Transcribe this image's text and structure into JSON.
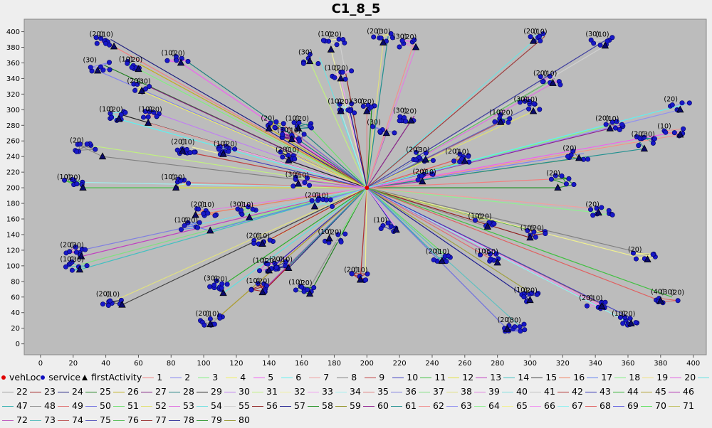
{
  "chart_data": {
    "type": "scatter",
    "title": "C1_8_5",
    "xlabel": "",
    "ylabel": "",
    "xlim": [
      -10,
      408
    ],
    "ylim": [
      -14,
      416
    ],
    "xticks": [
      0,
      20,
      40,
      60,
      80,
      100,
      120,
      140,
      160,
      180,
      200,
      220,
      240,
      260,
      280,
      300,
      320,
      340,
      360,
      380,
      400
    ],
    "yticks": [
      0,
      20,
      40,
      60,
      80,
      100,
      120,
      140,
      160,
      180,
      200,
      220,
      240,
      260,
      280,
      300,
      320,
      340,
      360,
      380,
      400
    ],
    "grid": false,
    "depot": {
      "x": 200,
      "y": 200
    },
    "legend_placement": "bottom",
    "legend_fixed": [
      {
        "label": "vehLoc",
        "symbol": "dot",
        "color": "#e00000"
      },
      {
        "label": "service",
        "symbol": "dot",
        "color": "#1010c0"
      },
      {
        "label": "firstActivity",
        "symbol": "triangle",
        "color": "#000000"
      }
    ],
    "route_labels": [
      "1",
      "2",
      "3",
      "4",
      "5",
      "6",
      "7",
      "8",
      "9",
      "10",
      "11",
      "12",
      "13",
      "14",
      "15",
      "16",
      "17",
      "18",
      "19",
      "20",
      "21",
      "22",
      "23",
      "24",
      "25",
      "26",
      "27",
      "28",
      "29",
      "30",
      "31",
      "32",
      "33",
      "34",
      "35",
      "36",
      "37",
      "38",
      "39",
      "40",
      "41",
      "42",
      "43",
      "44",
      "45",
      "46",
      "47",
      "48",
      "49",
      "50",
      "51",
      "52",
      "53",
      "54",
      "55",
      "56",
      "57",
      "58",
      "59",
      "60",
      "61",
      "62",
      "63",
      "64",
      "65",
      "66",
      "67",
      "68",
      "69",
      "70",
      "71",
      "72",
      "73",
      "74",
      "75",
      "76",
      "77",
      "78",
      "79",
      "80"
    ],
    "route_colors": [
      "#f08080",
      "#8080f0",
      "#80f080",
      "#f0f060",
      "#f060f0",
      "#60f0f0",
      "#f0a0a0",
      "#808080",
      "#c04040",
      "#4040c0",
      "#40c040",
      "#e0e040",
      "#c040c0",
      "#40c0c0",
      "#404040",
      "#f08060",
      "#6080f0",
      "#80f080",
      "#f0e080",
      "#e060e0",
      "#60e0e0",
      "#a0a0a0",
      "#a02020",
      "#202080",
      "#208020",
      "#c0b020",
      "#802080",
      "#208080",
      "#202020",
      "#c080f0",
      "#c0f080",
      "#f0f0a0",
      "#f0a0f0",
      "#a0f0f0",
      "#e08080",
      "#8080e0",
      "#80e080",
      "#e0e080",
      "#e080e0",
      "#80e0e0",
      "#c0c0c0",
      "#b03030",
      "#3030b0",
      "#30b030",
      "#b0a030",
      "#b030b0",
      "#30b0b0",
      "#909090",
      "#e07070",
      "#7070e0",
      "#70e070",
      "#e0e070",
      "#e070e0",
      "#70e0e0",
      "#d0d0d0",
      "#902020",
      "#202090",
      "#209020",
      "#909020",
      "#902090",
      "#209090",
      "#f09090",
      "#9090f0",
      "#90f090",
      "#f0f090",
      "#f090f0",
      "#90f0f0",
      "#e06060",
      "#6060e0",
      "#60e060",
      "#c0c060",
      "#c060c0",
      "#60c0c0",
      "#c06060",
      "#6060c0",
      "#60c060",
      "#a04040",
      "#4040a0",
      "#40a040",
      "#a0a040"
    ],
    "clusters": [
      {
        "x": 40,
        "y": 388,
        "triangle": [
          45,
          381
        ],
        "n": 8,
        "labels": [
          "(20)",
          "(10)"
        ]
      },
      {
        "x": 36,
        "y": 355,
        "triangle": [
          35,
          350
        ],
        "n": 6,
        "labels": [
          "(30)"
        ]
      },
      {
        "x": 58,
        "y": 356,
        "triangle": [
          60,
          352
        ],
        "n": 7,
        "labels": [
          "(10)",
          "(20)"
        ]
      },
      {
        "x": 63,
        "y": 328,
        "triangle": [
          62,
          324
        ],
        "n": 7,
        "labels": [
          "(20)",
          "(30)"
        ]
      },
      {
        "x": 84,
        "y": 364,
        "triangle": [
          86,
          360
        ],
        "n": 6,
        "labels": [
          "(10)",
          "(20)"
        ]
      },
      {
        "x": 46,
        "y": 292,
        "triangle": [
          48,
          288
        ],
        "n": 8,
        "labels": [
          "(10)",
          "(20)"
        ]
      },
      {
        "x": 70,
        "y": 292,
        "triangle": [
          66,
          283
        ],
        "n": 8,
        "labels": [
          "(10)",
          "(20)"
        ]
      },
      {
        "x": 28,
        "y": 252,
        "triangle": [
          38,
          240
        ],
        "n": 9,
        "labels": [
          "(20)"
        ]
      },
      {
        "x": 90,
        "y": 250,
        "triangle": [
          87,
          247
        ],
        "n": 10,
        "labels": [
          "(20)",
          "(10)"
        ]
      },
      {
        "x": 116,
        "y": 248,
        "triangle": [
          112,
          243
        ],
        "n": 10,
        "labels": [
          "(10)",
          "(20)"
        ]
      },
      {
        "x": 20,
        "y": 205,
        "triangle": [
          26,
          200
        ],
        "n": 7,
        "labels": [
          "(10)",
          "(20)"
        ]
      },
      {
        "x": 84,
        "y": 205,
        "triangle": [
          83,
          200
        ],
        "n": 6,
        "labels": [
          "(10)",
          "(20)"
        ]
      },
      {
        "x": 22,
        "y": 118,
        "triangle": [
          25,
          112
        ],
        "n": 9,
        "labels": [
          "(20)",
          "(30)"
        ]
      },
      {
        "x": 22,
        "y": 100,
        "triangle": [
          24,
          95
        ],
        "n": 7,
        "labels": [
          "(10)",
          "(30)"
        ]
      },
      {
        "x": 44,
        "y": 55,
        "triangle": [
          50,
          50
        ],
        "n": 7,
        "labels": [
          "(20)",
          "(10)"
        ]
      },
      {
        "x": 102,
        "y": 170,
        "triangle": [
          95,
          165
        ],
        "n": 9,
        "labels": [
          "(20)",
          "(10)"
        ]
      },
      {
        "x": 92,
        "y": 150,
        "triangle": [
          104,
          145
        ],
        "n": 6,
        "labels": [
          "(10)",
          "(20)"
        ]
      },
      {
        "x": 126,
        "y": 170,
        "triangle": [
          128,
          162
        ],
        "n": 7,
        "labels": [
          "(30)",
          "(10)"
        ]
      },
      {
        "x": 136,
        "y": 130,
        "triangle": [
          136,
          128
        ],
        "n": 7,
        "labels": [
          "(20)",
          "(10)"
        ]
      },
      {
        "x": 140,
        "y": 98,
        "triangle": [
          140,
          94
        ],
        "n": 7,
        "labels": [
          "(10)",
          "(20)"
        ]
      },
      {
        "x": 110,
        "y": 75,
        "triangle": [
          112,
          65
        ],
        "n": 10,
        "labels": [
          "(30)",
          "(20)"
        ]
      },
      {
        "x": 105,
        "y": 30,
        "triangle": [
          104,
          25
        ],
        "n": 10,
        "labels": [
          "(20)",
          "(10)"
        ]
      },
      {
        "x": 136,
        "y": 72,
        "triangle": [
          136,
          66
        ],
        "n": 8,
        "labels": [
          "(10)",
          "(20)"
        ]
      },
      {
        "x": 150,
        "y": 100,
        "triangle": [
          152,
          97
        ],
        "n": 8,
        "labels": [
          "(20)",
          "(10)"
        ]
      },
      {
        "x": 162,
        "y": 70,
        "triangle": [
          165,
          64
        ],
        "n": 8,
        "labels": [
          "(10)",
          "(20)"
        ]
      },
      {
        "x": 145,
        "y": 280,
        "triangle": [
          140,
          276
        ],
        "n": 8,
        "labels": [
          "(20)"
        ]
      },
      {
        "x": 155,
        "y": 265,
        "triangle": [
          154,
          262
        ],
        "n": 8,
        "labels": [
          "(30)",
          "(10)"
        ]
      },
      {
        "x": 160,
        "y": 280,
        "triangle": [
          158,
          276
        ],
        "n": 6,
        "labels": [
          "(10)",
          "(20)"
        ]
      },
      {
        "x": 154,
        "y": 240,
        "triangle": [
          152,
          235
        ],
        "n": 7,
        "labels": [
          "(20)",
          "(10)"
        ]
      },
      {
        "x": 160,
        "y": 208,
        "triangle": [
          158,
          205
        ],
        "n": 6,
        "labels": [
          "(30)",
          "(10)"
        ]
      },
      {
        "x": 168,
        "y": 365,
        "triangle": [
          165,
          362
        ],
        "n": 5,
        "labels": [
          "(30)"
        ]
      },
      {
        "x": 180,
        "y": 388,
        "triangle": [
          178,
          377
        ],
        "n": 7,
        "labels": [
          "(10)",
          "(20)"
        ]
      },
      {
        "x": 184,
        "y": 345,
        "triangle": [
          184,
          340
        ],
        "n": 6,
        "labels": [
          "(10)",
          "(20)"
        ]
      },
      {
        "x": 186,
        "y": 302,
        "triangle": [
          184,
          298
        ],
        "n": 8,
        "labels": [
          "(10)",
          "(20)"
        ]
      },
      {
        "x": 200,
        "y": 302,
        "triangle": [
          200,
          298
        ],
        "n": 6,
        "labels": [
          "(30)",
          "(20)"
        ]
      },
      {
        "x": 210,
        "y": 275,
        "triangle": [
          212,
          270
        ],
        "n": 5,
        "labels": [
          "(30)"
        ]
      },
      {
        "x": 226,
        "y": 290,
        "triangle": [
          227,
          286
        ],
        "n": 7,
        "labels": [
          "(30)",
          "(20)"
        ]
      },
      {
        "x": 210,
        "y": 392,
        "triangle": [
          210,
          386
        ],
        "n": 6,
        "labels": [
          "(20)",
          "(30)"
        ]
      },
      {
        "x": 226,
        "y": 385,
        "triangle": [
          230,
          380
        ],
        "n": 5,
        "labels": [
          "(30)",
          "(20)"
        ]
      },
      {
        "x": 172,
        "y": 182,
        "triangle": [
          168,
          176
        ],
        "n": 7,
        "labels": [
          "(20)",
          "(10)"
        ]
      },
      {
        "x": 180,
        "y": 135,
        "triangle": [
          177,
          135
        ],
        "n": 6,
        "labels": [
          "(10)",
          "(20)"
        ]
      },
      {
        "x": 196,
        "y": 86,
        "triangle": [
          196,
          82
        ],
        "n": 6,
        "labels": [
          "(20)",
          "(10)"
        ]
      },
      {
        "x": 214,
        "y": 150,
        "triangle": [
          218,
          146
        ],
        "n": 6,
        "labels": [
          "(10)"
        ]
      },
      {
        "x": 234,
        "y": 240,
        "triangle": [
          236,
          236
        ],
        "n": 9,
        "labels": [
          "(20)",
          "(30)"
        ]
      },
      {
        "x": 258,
        "y": 238,
        "triangle": [
          260,
          234
        ],
        "n": 8,
        "labels": [
          "(20)",
          "(10)"
        ]
      },
      {
        "x": 238,
        "y": 212,
        "triangle": [
          234,
          208
        ],
        "n": 6,
        "labels": [
          "(20)",
          "(10)"
        ]
      },
      {
        "x": 246,
        "y": 110,
        "triangle": [
          246,
          106
        ],
        "n": 7,
        "labels": [
          "(20)",
          "(10)"
        ]
      },
      {
        "x": 272,
        "y": 155,
        "triangle": [
          274,
          150
        ],
        "n": 7,
        "labels": [
          "(10)",
          "(20)"
        ]
      },
      {
        "x": 276,
        "y": 110,
        "triangle": [
          280,
          104
        ],
        "n": 7,
        "labels": [
          "(10)",
          "(50)"
        ]
      },
      {
        "x": 290,
        "y": 22,
        "triangle": [
          286,
          19
        ],
        "n": 10,
        "labels": [
          "(20)",
          "(30)"
        ]
      },
      {
        "x": 285,
        "y": 288,
        "triangle": [
          282,
          284
        ],
        "n": 7,
        "labels": [
          "(10)",
          "(20)"
        ]
      },
      {
        "x": 300,
        "y": 305,
        "triangle": [
          302,
          298
        ],
        "n": 8,
        "labels": [
          "(30)",
          "(10)"
        ]
      },
      {
        "x": 312,
        "y": 338,
        "triangle": [
          314,
          334
        ],
        "n": 7,
        "labels": [
          "(20)",
          "(10)"
        ]
      },
      {
        "x": 306,
        "y": 392,
        "triangle": [
          302,
          388
        ],
        "n": 6,
        "labels": [
          "(20)",
          "(10)"
        ]
      },
      {
        "x": 344,
        "y": 388,
        "triangle": [
          346,
          382
        ],
        "n": 7,
        "labels": [
          "(30)",
          "(10)"
        ]
      },
      {
        "x": 304,
        "y": 140,
        "triangle": [
          300,
          136
        ],
        "n": 6,
        "labels": [
          "(10)",
          "(20)"
        ]
      },
      {
        "x": 300,
        "y": 60,
        "triangle": [
          300,
          56
        ],
        "n": 8,
        "labels": [
          "(10)",
          "(20)"
        ]
      },
      {
        "x": 320,
        "y": 210,
        "triangle": [
          317,
          200
        ],
        "n": 6,
        "labels": [
          "(20)"
        ]
      },
      {
        "x": 330,
        "y": 242,
        "triangle": [
          330,
          238
        ],
        "n": 6,
        "labels": [
          "(20)"
        ]
      },
      {
        "x": 350,
        "y": 280,
        "triangle": [
          349,
          276
        ],
        "n": 8,
        "labels": [
          "(20)",
          "(10)"
        ]
      },
      {
        "x": 372,
        "y": 260,
        "triangle": [
          370,
          250
        ],
        "n": 8,
        "labels": [
          "(20)",
          "(30)"
        ]
      },
      {
        "x": 388,
        "y": 270,
        "triangle": [
          392,
          268
        ],
        "n": 6,
        "labels": [
          "(10)"
        ]
      },
      {
        "x": 392,
        "y": 305,
        "triangle": [
          392,
          300
        ],
        "n": 6,
        "labels": [
          "(20)"
        ]
      },
      {
        "x": 344,
        "y": 170,
        "triangle": [
          342,
          168
        ],
        "n": 9,
        "labels": [
          "(20)"
        ]
      },
      {
        "x": 370,
        "y": 112,
        "triangle": [
          372,
          108
        ],
        "n": 6,
        "labels": [
          "(20)"
        ]
      },
      {
        "x": 340,
        "y": 50,
        "triangle": [
          344,
          48
        ],
        "n": 8,
        "labels": [
          "(20)",
          "(10)"
        ]
      },
      {
        "x": 360,
        "y": 30,
        "triangle": [
          362,
          26
        ],
        "n": 10,
        "labels": [
          "(10)",
          "(20)"
        ]
      },
      {
        "x": 384,
        "y": 58,
        "triangle": [
          380,
          55
        ],
        "n": 6,
        "labels": [
          "(40)",
          "(30)",
          "(20)"
        ]
      }
    ]
  }
}
